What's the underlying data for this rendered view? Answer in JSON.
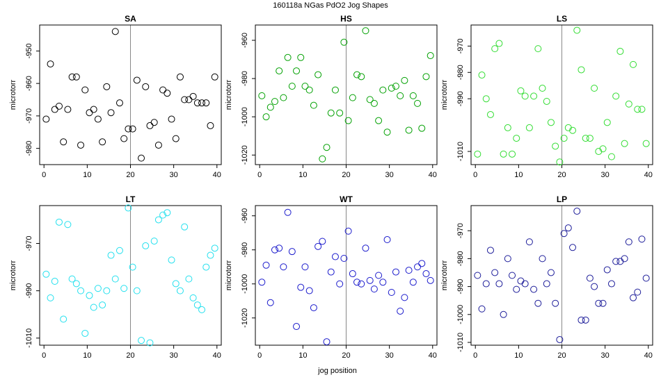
{
  "title": "160118a   NGas PdO2 Jog Shapes",
  "xlabel": "jog position",
  "chart_data": [
    {
      "type": "scatter",
      "title": "SA",
      "ylabel": "microtorr",
      "color": "#000000",
      "vline": 20,
      "xlim": [
        -1,
        41
      ],
      "ylim": [
        -985,
        -942
      ],
      "xticks": [
        0,
        10,
        20,
        30,
        40
      ],
      "yticks": [
        -980,
        -970,
        -960,
        -950
      ],
      "x": [
        0.5,
        1.5,
        2.5,
        3.5,
        4.5,
        5.5,
        6.5,
        7.5,
        8.5,
        9.5,
        10.5,
        11.5,
        12.5,
        13.5,
        14.5,
        15.5,
        16.5,
        17.5,
        18.5,
        19.5,
        20.5,
        21.5,
        22.5,
        23.5,
        24.5,
        25.5,
        26.5,
        27.5,
        28.5,
        29.5,
        30.5,
        31.5,
        32.5,
        33.5,
        34.5,
        35.5,
        36.5,
        37.5,
        38.5,
        39.5
      ],
      "values": [
        -971,
        -954,
        -968,
        -967,
        -978,
        -968,
        -958,
        -958,
        -979,
        -962,
        -969,
        -968,
        -971,
        -978,
        -961,
        -969,
        -944,
        -966,
        -977,
        -974,
        -974,
        -959,
        -983,
        -961,
        -973,
        -972,
        -979,
        -962,
        -963,
        -971,
        -977,
        -958,
        -965,
        -965,
        -964,
        -966,
        -966,
        -966,
        -973,
        -958
      ]
    },
    {
      "type": "scatter",
      "title": "HS",
      "ylabel": "microtorr",
      "color": "#00a000",
      "vline": 20,
      "xlim": [
        -1,
        41
      ],
      "ylim": [
        -1025,
        -952
      ],
      "xticks": [
        0,
        10,
        20,
        30,
        40
      ],
      "yticks": [
        -1020,
        -1000,
        -980,
        -960
      ],
      "x": [
        0.5,
        1.5,
        2.5,
        3.5,
        4.5,
        5.5,
        6.5,
        7.5,
        8.5,
        9.5,
        10.5,
        11.5,
        12.5,
        13.5,
        14.5,
        15.5,
        16.5,
        17.5,
        18.5,
        19.5,
        20.5,
        21.5,
        22.5,
        23.5,
        24.5,
        25.5,
        26.5,
        27.5,
        28.5,
        29.5,
        30.5,
        31.5,
        32.5,
        33.5,
        34.5,
        35.5,
        36.5,
        37.5,
        38.5,
        39.5
      ],
      "values": [
        -989,
        -1000,
        -995,
        -992,
        -976,
        -990,
        -969,
        -984,
        -976,
        -969,
        -984,
        -986,
        -994,
        -978,
        -1022,
        -1016,
        -998,
        -986,
        -998,
        -961,
        -1002,
        -990,
        -978,
        -979,
        -955,
        -991,
        -993,
        -1002,
        -986,
        -1008,
        -985,
        -984,
        -989,
        -981,
        -1007,
        -989,
        -993,
        -1006,
        -979,
        -968
      ]
    },
    {
      "type": "scatter",
      "title": "LS",
      "ylabel": "microtorr",
      "color": "#33dd33",
      "vline": 20,
      "xlim": [
        -1,
        41
      ],
      "ylim": [
        -1015,
        -962
      ],
      "xticks": [
        0,
        10,
        20,
        30,
        40
      ],
      "yticks": [
        -1010,
        -990,
        -980,
        -970
      ],
      "x": [
        0.5,
        1.5,
        2.5,
        3.5,
        4.5,
        5.5,
        6.5,
        7.5,
        8.5,
        9.5,
        10.5,
        11.5,
        12.5,
        13.5,
        14.5,
        15.5,
        16.5,
        17.5,
        18.5,
        19.5,
        20.5,
        21.5,
        22.5,
        23.5,
        24.5,
        25.5,
        26.5,
        27.5,
        28.5,
        29.5,
        30.5,
        31.5,
        32.5,
        33.5,
        34.5,
        35.5,
        36.5,
        37.5,
        38.5,
        39.5
      ],
      "values": [
        -1011,
        -981,
        -990,
        -996,
        -971,
        -969,
        -1011,
        -1001,
        -1011,
        -1005,
        -987,
        -989,
        -1001,
        -989,
        -971,
        -986,
        -991,
        -999,
        -1008,
        -1014,
        -1005,
        -1001,
        -1002,
        -964,
        -979,
        -1005,
        -1005,
        -986,
        -1010,
        -1009,
        -999,
        -1012,
        -989,
        -972,
        -1007,
        -992,
        -977,
        -994,
        -994,
        -1007
      ]
    },
    {
      "type": "scatter",
      "title": "LT",
      "ylabel": "microtorr",
      "color": "#22e0ee",
      "vline": 20,
      "xlim": [
        -1,
        41
      ],
      "ylim": [
        -1013,
        -954
      ],
      "xticks": [
        0,
        10,
        20,
        30,
        40
      ],
      "yticks": [
        -1010,
        -990,
        -970
      ],
      "x": [
        0.5,
        1.5,
        2.5,
        3.5,
        4.5,
        5.5,
        6.5,
        7.5,
        8.5,
        9.5,
        10.5,
        11.5,
        12.5,
        13.5,
        14.5,
        15.5,
        16.5,
        17.5,
        18.5,
        19.5,
        20.5,
        21.5,
        22.5,
        23.5,
        24.5,
        25.5,
        26.5,
        27.5,
        28.5,
        29.5,
        30.5,
        31.5,
        32.5,
        33.5,
        34.5,
        35.5,
        36.5,
        37.5,
        38.5,
        39.5
      ],
      "values": [
        -983,
        -993,
        -986,
        -961,
        -1002,
        -962,
        -985,
        -987,
        -990,
        -1008,
        -992,
        -997,
        -989,
        -996,
        -990,
        -975,
        -985,
        -973,
        -989,
        -955,
        -980,
        -990,
        -1011,
        -971,
        -1012,
        -969,
        -960,
        -958,
        -957,
        -977,
        -987,
        -990,
        -963,
        -985,
        -993,
        -996,
        -998,
        -980,
        -975,
        -972
      ]
    },
    {
      "type": "scatter",
      "title": "WT",
      "ylabel": "microtorr",
      "color": "#1a1acc",
      "vline": 20,
      "xlim": [
        -1,
        41
      ],
      "ylim": [
        -1036,
        -954
      ],
      "xticks": [
        0,
        10,
        20,
        30,
        40
      ],
      "yticks": [
        -1020,
        -1000,
        -980,
        -960
      ],
      "x": [
        0.5,
        1.5,
        2.5,
        3.5,
        4.5,
        5.5,
        6.5,
        7.5,
        8.5,
        9.5,
        10.5,
        11.5,
        12.5,
        13.5,
        14.5,
        15.5,
        16.5,
        17.5,
        18.5,
        19.5,
        20.5,
        21.5,
        22.5,
        23.5,
        24.5,
        25.5,
        26.5,
        27.5,
        28.5,
        29.5,
        30.5,
        31.5,
        32.5,
        33.5,
        34.5,
        35.5,
        36.5,
        37.5,
        38.5,
        39.5
      ],
      "values": [
        -999,
        -989,
        -1011,
        -980,
        -979,
        -990,
        -958,
        -981,
        -1025,
        -1002,
        -990,
        -1004,
        -1014,
        -978,
        -975,
        -1034,
        -993,
        -984,
        -1000,
        -985,
        -969,
        -994,
        -999,
        -1000,
        -979,
        -998,
        -1003,
        -995,
        -999,
        -974,
        -1005,
        -993,
        -1016,
        -1008,
        -992,
        -999,
        -990,
        -988,
        -994,
        -998
      ]
    },
    {
      "type": "scatter",
      "title": "LP",
      "ylabel": "microtorr",
      "color": "#1c1c99",
      "vline": 20,
      "xlim": [
        -1,
        41
      ],
      "ylim": [
        -1011,
        -961
      ],
      "xticks": [
        0,
        10,
        20,
        30,
        40
      ],
      "yticks": [
        -1010,
        -1000,
        -990,
        -980,
        -970
      ],
      "x": [
        0.5,
        1.5,
        2.5,
        3.5,
        4.5,
        5.5,
        6.5,
        7.5,
        8.5,
        9.5,
        10.5,
        11.5,
        12.5,
        13.5,
        14.5,
        15.5,
        16.5,
        17.5,
        18.5,
        19.5,
        20.5,
        21.5,
        22.5,
        23.5,
        24.5,
        25.5,
        26.5,
        27.5,
        28.5,
        29.5,
        30.5,
        31.5,
        32.5,
        33.5,
        34.5,
        35.5,
        36.5,
        37.5,
        38.5,
        39.5
      ],
      "values": [
        -986,
        -998,
        -989,
        -977,
        -985,
        -989,
        -1000,
        -980,
        -986,
        -991,
        -988,
        -989,
        -974,
        -991,
        -996,
        -980,
        -989,
        -985,
        -996,
        -1009,
        -971,
        -969,
        -976,
        -963,
        -1002,
        -1002,
        -987,
        -990,
        -996,
        -996,
        -984,
        -989,
        -981,
        -981,
        -980,
        -974,
        -994,
        -992,
        -973,
        -987
      ]
    }
  ]
}
